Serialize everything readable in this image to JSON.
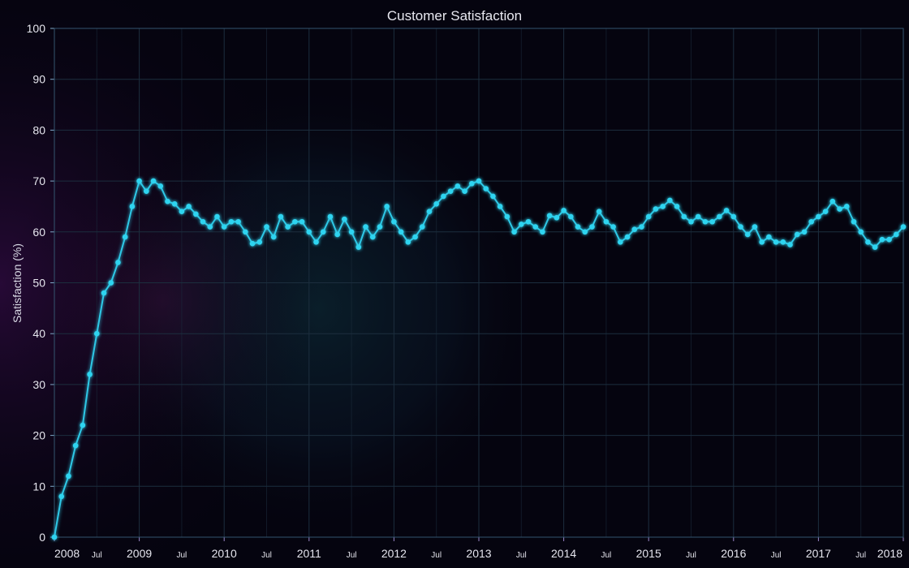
{
  "chart_data": {
    "type": "line",
    "title": "Customer Satisfaction",
    "xlabel": "",
    "ylabel": "Satisfaction (%)",
    "ylim": [
      0,
      100
    ],
    "xlim": [
      "2008-01",
      "2018-01"
    ],
    "grid": true,
    "y_ticks": [
      "0",
      "10",
      "20",
      "30",
      "40",
      "50",
      "60",
      "70",
      "80",
      "90",
      "100"
    ],
    "x_major_ticks": [
      "2008",
      "2009",
      "2010",
      "2011",
      "2012",
      "2013",
      "2014",
      "2015",
      "2016",
      "2017",
      "2018"
    ],
    "x_minor_tick_label": "Jul",
    "colors": {
      "line": "#2ec8e6",
      "marker": "#2fd4f0",
      "grid": "#1c2e3e",
      "plot_border": "#3a5a76",
      "axis_left": "#4a9fd0",
      "axis_bottom": "#b070d0"
    },
    "series": [
      {
        "x": [
          "2008-01",
          "2008-02",
          "2008-03",
          "2008-04",
          "2008-05",
          "2008-06",
          "2008-07",
          "2008-08",
          "2008-09",
          "2008-10",
          "2008-11",
          "2008-12",
          "2009-01",
          "2009-02",
          "2009-03",
          "2009-04",
          "2009-05",
          "2009-06",
          "2009-07",
          "2009-08",
          "2009-09",
          "2009-10",
          "2009-11",
          "2009-12",
          "2010-01",
          "2010-02",
          "2010-03",
          "2010-04",
          "2010-05",
          "2010-06",
          "2010-07",
          "2010-08",
          "2010-09",
          "2010-10",
          "2010-11",
          "2010-12",
          "2011-01",
          "2011-02",
          "2011-03",
          "2011-04",
          "2011-05",
          "2011-06",
          "2011-07",
          "2011-08",
          "2011-09",
          "2011-10",
          "2011-11",
          "2011-12",
          "2012-01",
          "2012-02",
          "2012-03",
          "2012-04",
          "2012-05",
          "2012-06",
          "2012-07",
          "2012-08",
          "2012-09",
          "2012-10",
          "2012-11",
          "2012-12",
          "2013-01",
          "2013-02",
          "2013-03",
          "2013-04",
          "2013-05",
          "2013-06",
          "2013-07",
          "2013-08",
          "2013-09",
          "2013-10",
          "2013-11",
          "2013-12",
          "2014-01",
          "2014-02",
          "2014-03",
          "2014-04",
          "2014-05",
          "2014-06",
          "2014-07",
          "2014-08",
          "2014-09",
          "2014-10",
          "2014-11",
          "2014-12",
          "2015-01",
          "2015-02",
          "2015-03",
          "2015-04",
          "2015-05",
          "2015-06",
          "2015-07",
          "2015-08",
          "2015-09",
          "2015-10",
          "2015-11",
          "2015-12",
          "2016-01",
          "2016-02",
          "2016-03",
          "2016-04",
          "2016-05",
          "2016-06",
          "2016-07",
          "2016-08",
          "2016-09",
          "2016-10",
          "2016-11",
          "2016-12",
          "2017-01",
          "2017-02",
          "2017-03",
          "2017-04",
          "2017-05",
          "2017-06",
          "2017-07",
          "2017-08",
          "2017-09",
          "2017-10",
          "2017-11",
          "2017-12",
          "2018-01"
        ],
        "values": [
          0,
          8,
          12,
          18,
          22,
          32,
          40,
          48,
          50,
          54,
          59,
          65,
          70,
          68,
          70,
          69,
          66,
          65.5,
          64,
          65,
          63.5,
          62,
          61,
          63,
          61,
          62,
          62,
          60,
          57.7,
          58,
          61,
          59,
          63,
          61,
          62,
          62,
          60,
          58,
          60,
          63,
          59.5,
          62.5,
          60,
          57,
          61,
          59,
          61,
          65,
          62,
          60,
          58,
          59,
          61,
          64,
          65.5,
          67,
          68,
          69,
          68,
          69.5,
          70,
          68.5,
          67,
          65,
          63,
          60,
          61.5,
          62,
          61,
          60,
          63.2,
          62.8,
          64.2,
          63,
          61,
          60,
          61,
          64,
          62,
          61,
          58,
          59,
          60.5,
          61,
          63,
          64.5,
          65,
          66.2,
          65,
          63,
          62,
          63,
          62,
          62,
          63,
          64.2,
          63,
          61,
          59.5,
          61,
          58,
          59,
          58,
          58,
          57.5,
          59.5,
          60,
          62,
          63,
          64,
          66,
          64.5,
          65,
          62,
          60,
          58,
          57,
          58.5,
          58.5,
          59.5,
          61
        ]
      }
    ]
  }
}
